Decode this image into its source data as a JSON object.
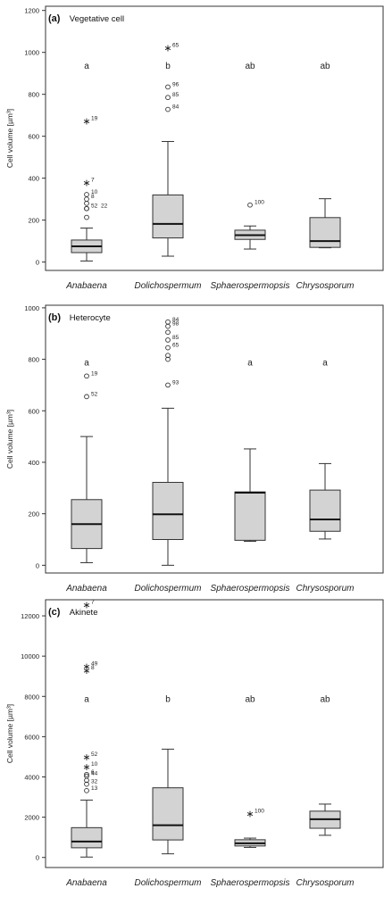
{
  "chart_data": [
    {
      "type": "boxplot",
      "panel_label": "(a)",
      "title": "Vegetative cell",
      "ylabel": "Cell volume [µm³]",
      "ylim": [
        -40,
        1220
      ],
      "yticks": [
        0,
        200,
        400,
        600,
        800,
        1000,
        1200
      ],
      "grid": false,
      "categories": [
        "Anabaena",
        "Dolichospermum",
        "Sphaerospermopsis",
        "Chrysosporum"
      ],
      "groups": [
        "a",
        "b",
        "ab",
        "ab"
      ],
      "group_y": 940,
      "boxes": [
        {
          "min": 5,
          "q1": 45,
          "median": 75,
          "q3": 105,
          "max": 162
        },
        {
          "min": 28,
          "q1": 115,
          "median": 182,
          "q3": 320,
          "max": 575
        },
        {
          "min": 62,
          "q1": 108,
          "median": 128,
          "q3": 152,
          "max": 172
        },
        {
          "min": 68,
          "q1": 70,
          "median": 100,
          "q3": 212,
          "max": 302
        }
      ],
      "outliers": [
        [
          {
            "value": 672,
            "label": "19",
            "kind": "star"
          },
          {
            "value": 380,
            "label": "7",
            "kind": "star"
          },
          {
            "value": 322,
            "label": "10",
            "kind": "circle"
          },
          {
            "value": 300,
            "label": "8",
            "kind": "circle"
          },
          {
            "value": 280,
            "label": "",
            "kind": "circle"
          },
          {
            "value": 255,
            "label": "52",
            "kind": "circle"
          },
          {
            "value": 255,
            "label": "22",
            "kind": "circle"
          },
          {
            "value": 213,
            "label": "",
            "kind": "circle"
          }
        ],
        [
          {
            "value": 1022,
            "label": "65",
            "kind": "star"
          },
          {
            "value": 835,
            "label": "96",
            "kind": "circle"
          },
          {
            "value": 785,
            "label": "85",
            "kind": "circle"
          },
          {
            "value": 728,
            "label": "84",
            "kind": "circle"
          }
        ],
        [
          {
            "value": 272,
            "label": "100",
            "kind": "circle"
          }
        ],
        []
      ]
    },
    {
      "type": "boxplot",
      "panel_label": "(b)",
      "title": "Heterocyte",
      "ylabel": "Cell volume [µm³]",
      "ylim": [
        -30,
        1010
      ],
      "yticks": [
        0,
        200,
        400,
        600,
        800,
        1000
      ],
      "ytick_labels": [
        "0",
        "200",
        "400",
        "600",
        "800",
        "1000"
      ],
      "grid": false,
      "categories": [
        "Anabaena",
        "Dolichospermum",
        "Sphaerospermopsis",
        "Chrysosporum"
      ],
      "groups": [
        "a",
        "",
        "a",
        "a"
      ],
      "group_y": 790,
      "boxes": [
        {
          "min": 10,
          "q1": 65,
          "median": 160,
          "q3": 255,
          "max": 500
        },
        {
          "min": 0,
          "q1": 100,
          "median": 198,
          "q3": 322,
          "max": 610
        },
        {
          "min": 93,
          "q1": 97,
          "median": 282,
          "q3": 285,
          "max": 452
        },
        {
          "min": 102,
          "q1": 132,
          "median": 178,
          "q3": 292,
          "max": 395
        }
      ],
      "outliers": [
        [
          {
            "value": 735,
            "label": "19",
            "kind": "circle"
          },
          {
            "value": 655,
            "label": "52",
            "kind": "circle"
          }
        ],
        [
          {
            "value": 945,
            "label": "84",
            "kind": "circle"
          },
          {
            "value": 928,
            "label": "98",
            "kind": "circle"
          },
          {
            "value": 905,
            "label": "",
            "kind": "circle"
          },
          {
            "value": 875,
            "label": "85",
            "kind": "circle"
          },
          {
            "value": 845,
            "label": "65",
            "kind": "circle"
          },
          {
            "value": 815,
            "label": "",
            "kind": "circle"
          },
          {
            "value": 800,
            "label": "",
            "kind": "circle"
          },
          {
            "value": 700,
            "label": "93",
            "kind": "circle"
          }
        ],
        [],
        []
      ]
    },
    {
      "type": "boxplot",
      "panel_label": "(c)",
      "title": "Akinete",
      "ylabel": "Cell volume [µm³]",
      "ylim": [
        -500,
        12800
      ],
      "yticks": [
        0,
        2000,
        4000,
        6000,
        8000,
        10000,
        12000
      ],
      "grid": false,
      "categories": [
        "Anabaena",
        "Dolichospermum",
        "Sphaerospermopsis",
        "Chrysosporum"
      ],
      "groups": [
        "a",
        "b",
        "ab",
        "ab"
      ],
      "group_y": 7900,
      "boxes": [
        {
          "min": 20,
          "q1": 480,
          "median": 790,
          "q3": 1480,
          "max": 2850
        },
        {
          "min": 180,
          "q1": 870,
          "median": 1600,
          "q3": 3460,
          "max": 5380
        },
        {
          "min": 500,
          "q1": 570,
          "median": 700,
          "q3": 880,
          "max": 960
        },
        {
          "min": 1100,
          "q1": 1450,
          "median": 1900,
          "q3": 2300,
          "max": 2650
        }
      ],
      "outliers": [
        [
          {
            "value": 12550,
            "label": "7",
            "kind": "star"
          },
          {
            "value": 9500,
            "label": "49",
            "kind": "star"
          },
          {
            "value": 9300,
            "label": "8",
            "kind": "star"
          },
          {
            "value": 5000,
            "label": "52",
            "kind": "star"
          },
          {
            "value": 4500,
            "label": "10",
            "kind": "star"
          },
          {
            "value": 4120,
            "label": "6",
            "kind": "circle"
          },
          {
            "value": 4040,
            "label": "44",
            "kind": "circle"
          },
          {
            "value": 3830,
            "label": "",
            "kind": "circle"
          },
          {
            "value": 3640,
            "label": "32",
            "kind": "circle"
          },
          {
            "value": 3320,
            "label": "13",
            "kind": "circle"
          }
        ],
        [],
        [
          {
            "value": 2180,
            "label": "100",
            "kind": "star"
          }
        ],
        []
      ]
    }
  ]
}
